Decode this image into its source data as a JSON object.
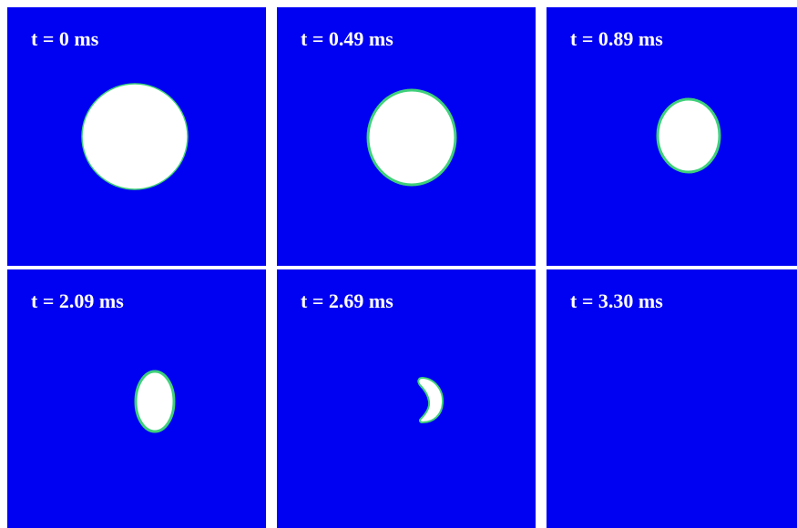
{
  "panels": [
    {
      "label": "t = 0 ms"
    },
    {
      "label": "t = 0.49 ms"
    },
    {
      "label": "t = 0.89 ms"
    },
    {
      "label": "t = 2.09 ms"
    },
    {
      "label": "t = 2.69 ms"
    },
    {
      "label": "t = 3.30 ms"
    }
  ],
  "colors": {
    "background": "#0000f2",
    "droplet": "#ffffff",
    "interface": "#3fd07a"
  }
}
